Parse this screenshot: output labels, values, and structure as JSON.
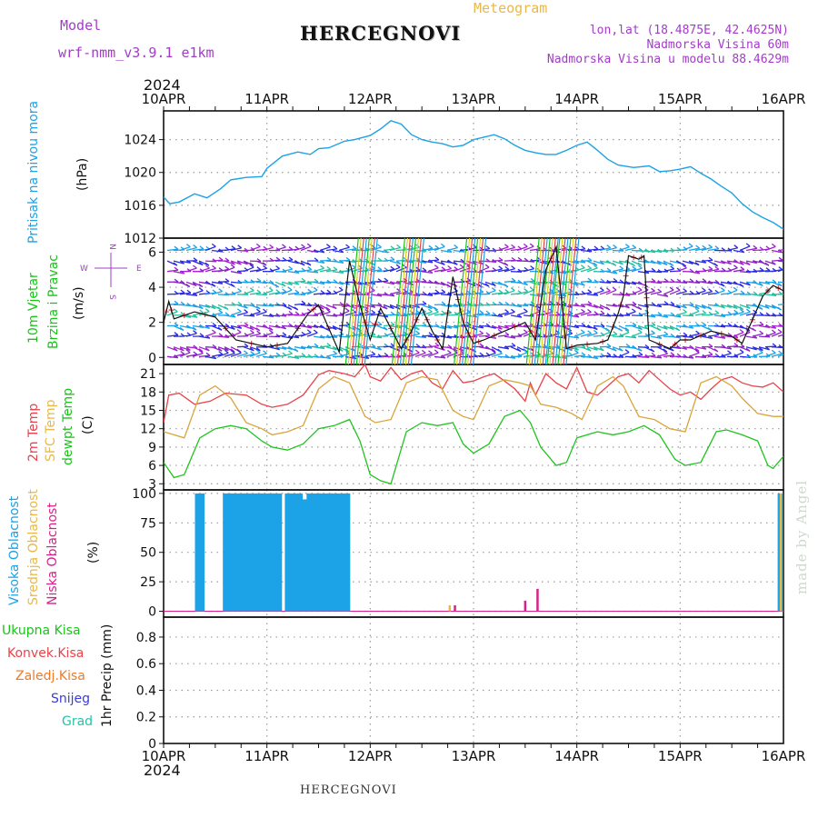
{
  "header": {
    "model_label": "Model",
    "model_name": "wrf-nmm_v3.9.1 e1km",
    "meteogram_label": "Meteogram",
    "station": "HERCEGNOVI",
    "lonlat": "lon,lat (18.4875E, 42.4625N)",
    "altitude": "Nadmorska Visina 60m",
    "model_altitude": "Nadmorska Visina u modelu 88.4629m",
    "year": "2024",
    "signature": "made by Angel"
  },
  "colors": {
    "purple": "#a23cc8",
    "pressure": "#1ca2e6",
    "wind_label": "#19c419",
    "t2m": "#e8424a",
    "sfc": "#d9a43a",
    "dewpt": "#1ec41e",
    "high_cloud": "#1ca2e6",
    "mid_cloud": "#e8b84a",
    "low_cloud": "#d8208a",
    "total_precip": "#19c419",
    "conv_precip": "#e8424a",
    "frozen_precip": "#ef7a28",
    "snow": "#3b3be0",
    "graupel": "#22c4a8"
  },
  "dates": [
    "10APR",
    "11APR",
    "12APR",
    "13APR",
    "14APR",
    "15APR",
    "16APR"
  ],
  "panels": {
    "pressure": {
      "labels": [
        "Pritisak na nivou mora"
      ],
      "unit": "(hPa)"
    },
    "wind": {
      "labels": [
        "10m Vjetar",
        "Brzina i Pravac"
      ],
      "unit": "(m/s)",
      "compass": {
        "n": "N",
        "s": "S",
        "e": "E",
        "w": "W"
      }
    },
    "temp": {
      "labels": [
        "2m Temp",
        "SFC Temp",
        "dewpt Temp"
      ],
      "unit": "(C)"
    },
    "cloud": {
      "labels": [
        "Visoka Oblacnost",
        "Srednja Oblacnost",
        "Niska Oblacnost"
      ],
      "unit": "(%)"
    },
    "precip": {
      "labels": [
        "Ukupna Kisa",
        "Konvek.Kisa",
        "Zaledj.Kisa",
        "Snijeg",
        "Grad"
      ],
      "unit": "1hr Precip (mm)"
    }
  },
  "chart_data": [
    {
      "type": "line",
      "panel": "pressure",
      "ylim": [
        1012,
        1027.5
      ],
      "yticks": [
        1012,
        1016,
        1020,
        1024
      ],
      "series": [
        {
          "x": [
            0,
            0.06,
            0.15,
            0.3,
            0.42,
            0.55,
            0.65,
            0.8,
            0.95,
            1.0,
            1.15,
            1.3,
            1.42,
            1.5,
            1.6,
            1.75,
            1.85,
            2.0,
            2.1,
            2.2,
            2.3,
            2.4,
            2.5,
            2.6,
            2.7,
            2.8,
            2.9,
            3.0,
            3.1,
            3.2,
            3.3,
            3.4,
            3.5,
            3.6,
            3.7,
            3.8,
            3.9,
            4.0,
            4.1,
            4.2,
            4.3,
            4.4,
            4.55,
            4.7,
            4.8,
            4.9,
            5.0,
            5.1,
            5.2,
            5.3,
            5.4,
            5.5,
            5.6,
            5.7,
            5.8,
            5.9,
            6.0
          ],
          "values": [
            1017,
            1016.2,
            1016.4,
            1017.4,
            1016.9,
            1018.0,
            1019.1,
            1019.4,
            1019.5,
            1020.5,
            1022.0,
            1022.5,
            1022.2,
            1022.9,
            1023.0,
            1023.8,
            1024.0,
            1024.5,
            1025.3,
            1026.3,
            1025.9,
            1024.6,
            1024.0,
            1023.7,
            1023.5,
            1023.1,
            1023.3,
            1024.0,
            1024.3,
            1024.6,
            1024.1,
            1023.3,
            1022.7,
            1022.4,
            1022.2,
            1022.2,
            1022.7,
            1023.3,
            1023.7,
            1022.7,
            1021.6,
            1020.9,
            1020.6,
            1020.8,
            1020.1,
            1020.2,
            1020.4,
            1020.7,
            1019.9,
            1019.2,
            1018.3,
            1017.5,
            1016.2,
            1015.2,
            1014.5,
            1013.9,
            1013.1
          ]
        }
      ]
    },
    {
      "type": "line",
      "panel": "wind",
      "ylim": [
        -0.4,
        6.8
      ],
      "yticks": [
        0,
        2,
        4,
        6
      ],
      "series": [
        {
          "name": "speed",
          "x": [
            0,
            0.05,
            0.1,
            0.3,
            0.5,
            0.7,
            1.0,
            1.2,
            1.4,
            1.5,
            1.7,
            1.8,
            1.9,
            2.0,
            2.1,
            2.3,
            2.4,
            2.5,
            2.6,
            2.7,
            2.8,
            2.9,
            3.0,
            3.1,
            3.3,
            3.5,
            3.6,
            3.7,
            3.8,
            3.9,
            4.0,
            4.2,
            4.3,
            4.4,
            4.45,
            4.5,
            4.6,
            4.65,
            4.7,
            4.9,
            5.0,
            5.1,
            5.3,
            5.5,
            5.6,
            5.8,
            5.9,
            6.0
          ],
          "values": [
            2.0,
            3.2,
            2.2,
            2.6,
            2.3,
            1.0,
            0.6,
            0.8,
            2.5,
            3.0,
            0.3,
            5.5,
            3.0,
            1.0,
            2.8,
            0.5,
            1.5,
            2.8,
            1.5,
            0.5,
            4.6,
            2.0,
            0.8,
            1.0,
            1.5,
            2.0,
            1.0,
            5.0,
            6.3,
            0.5,
            0.7,
            0.8,
            1.0,
            2.5,
            3.5,
            5.8,
            5.6,
            5.8,
            1.0,
            0.5,
            1.0,
            1.0,
            1.5,
            1.2,
            0.8,
            3.5,
            4.1,
            3.8
          ]
        }
      ]
    },
    {
      "type": "line",
      "panel": "temp",
      "ylim": [
        2,
        22.5
      ],
      "yticks": [
        3,
        6,
        9,
        12,
        15,
        18,
        21
      ],
      "series": [
        {
          "name": "2m",
          "x": [
            0,
            0.05,
            0.15,
            0.3,
            0.45,
            0.6,
            0.8,
            0.95,
            1.05,
            1.2,
            1.35,
            1.5,
            1.6,
            1.75,
            1.85,
            1.95,
            2.0,
            2.1,
            2.2,
            2.3,
            2.4,
            2.5,
            2.6,
            2.7,
            2.8,
            2.9,
            3.0,
            3.1,
            3.2,
            3.3,
            3.4,
            3.5,
            3.55,
            3.6,
            3.7,
            3.8,
            3.9,
            4.0,
            4.1,
            4.2,
            4.3,
            4.4,
            4.5,
            4.6,
            4.7,
            4.8,
            4.9,
            5.0,
            5.1,
            5.2,
            5.3,
            5.4,
            5.5,
            5.6,
            5.7,
            5.8,
            5.9,
            6.0
          ],
          "values": [
            13,
            17.5,
            17.8,
            16.0,
            16.5,
            17.8,
            17.5,
            16.0,
            15.5,
            16.0,
            17.5,
            20.8,
            21.5,
            21.0,
            20.5,
            22.5,
            20.5,
            19.8,
            22.0,
            20.0,
            21.0,
            21.5,
            19.5,
            18.5,
            21.5,
            19.5,
            19.8,
            20.5,
            21.0,
            19.8,
            18.5,
            16.5,
            19.5,
            17.5,
            21.0,
            19.5,
            18.5,
            22.0,
            18.0,
            17.5,
            19.0,
            20.5,
            21.0,
            19.5,
            21.5,
            20.0,
            18.5,
            17.5,
            18.0,
            16.8,
            18.5,
            20.0,
            20.5,
            19.5,
            19.0,
            18.8,
            19.5,
            18.0
          ]
        },
        {
          "name": "sfc",
          "x": [
            0,
            0.1,
            0.2,
            0.35,
            0.5,
            0.65,
            0.8,
            0.95,
            1.05,
            1.2,
            1.35,
            1.5,
            1.65,
            1.8,
            1.95,
            2.05,
            2.2,
            2.35,
            2.5,
            2.65,
            2.8,
            2.9,
            3.0,
            3.15,
            3.3,
            3.45,
            3.55,
            3.65,
            3.8,
            3.95,
            4.05,
            4.2,
            4.35,
            4.45,
            4.6,
            4.75,
            4.9,
            5.05,
            5.2,
            5.35,
            5.5,
            5.6,
            5.75,
            5.9,
            6.0
          ],
          "values": [
            11.5,
            11.0,
            10.5,
            17.5,
            19.0,
            17.0,
            13.0,
            12.0,
            11.0,
            11.5,
            12.5,
            18.5,
            20.5,
            19.5,
            14.0,
            13.0,
            13.5,
            19.5,
            20.5,
            20.0,
            15.0,
            14.0,
            13.5,
            19.0,
            20.0,
            19.5,
            19.0,
            16.0,
            15.5,
            14.5,
            13.5,
            19.0,
            20.5,
            19.0,
            14.0,
            13.5,
            12.0,
            11.5,
            19.5,
            20.5,
            19.0,
            17.0,
            14.5,
            14.0,
            14.0
          ]
        },
        {
          "name": "dewpt",
          "x": [
            0,
            0.1,
            0.2,
            0.35,
            0.5,
            0.65,
            0.8,
            0.95,
            1.05,
            1.2,
            1.35,
            1.5,
            1.65,
            1.8,
            1.9,
            2.0,
            2.1,
            2.2,
            2.35,
            2.5,
            2.65,
            2.8,
            2.9,
            3.0,
            3.15,
            3.3,
            3.45,
            3.55,
            3.65,
            3.8,
            3.9,
            4.0,
            4.1,
            4.2,
            4.35,
            4.5,
            4.65,
            4.8,
            4.95,
            5.05,
            5.2,
            5.35,
            5.45,
            5.6,
            5.75,
            5.85,
            5.9,
            6.0
          ],
          "values": [
            6.5,
            4.0,
            4.5,
            10.5,
            12.0,
            12.5,
            12.0,
            10.0,
            9.0,
            8.5,
            9.5,
            12.0,
            12.5,
            13.5,
            10.0,
            4.5,
            3.5,
            3.0,
            11.5,
            13.0,
            12.5,
            13.0,
            9.5,
            8.0,
            9.5,
            14.0,
            15.0,
            13.0,
            9.0,
            6.0,
            6.5,
            10.5,
            11.0,
            11.5,
            11.0,
            11.5,
            12.5,
            11.0,
            7.0,
            6.0,
            6.5,
            11.5,
            11.8,
            11.0,
            10.0,
            6.0,
            5.5,
            7.5
          ]
        }
      ]
    },
    {
      "type": "bar",
      "panel": "cloud",
      "ylim": [
        -5,
        103
      ],
      "yticks": [
        0,
        25,
        50,
        75,
        100
      ],
      "series": [
        {
          "name": "high",
          "x": [
            0.33,
            0.37,
            0.6,
            0.64,
            0.68,
            0.72,
            0.76,
            0.8,
            0.84,
            0.88,
            0.92,
            0.96,
            1.0,
            1.04,
            1.08,
            1.12,
            1.2,
            1.24,
            1.28,
            1.32,
            1.37,
            1.41,
            1.45,
            1.49,
            1.53,
            1.57,
            1.61,
            1.65,
            1.7,
            1.74,
            1.78,
            5.97
          ],
          "values": [
            100,
            100,
            100,
            100,
            100,
            100,
            100,
            100,
            100,
            100,
            100,
            100,
            100,
            100,
            100,
            100,
            100,
            100,
            100,
            100,
            95,
            100,
            100,
            100,
            100,
            100,
            100,
            100,
            100,
            100,
            100,
            100
          ]
        },
        {
          "name": "middle",
          "x": [
            2.77,
            5.975
          ],
          "values": [
            5,
            100
          ]
        },
        {
          "name": "low",
          "x": [
            2.82,
            3.5,
            3.62
          ],
          "values": [
            5,
            9,
            19
          ]
        }
      ]
    },
    {
      "type": "bar",
      "panel": "precip",
      "ylim": [
        0,
        0.95
      ],
      "yticks": [
        0,
        0.2,
        0.4,
        0.6,
        0.8
      ],
      "series": [
        {
          "name": "total",
          "values": []
        },
        {
          "name": "convective",
          "values": []
        },
        {
          "name": "frozen",
          "values": []
        },
        {
          "name": "snow",
          "values": []
        },
        {
          "name": "graupel",
          "values": []
        }
      ]
    }
  ]
}
